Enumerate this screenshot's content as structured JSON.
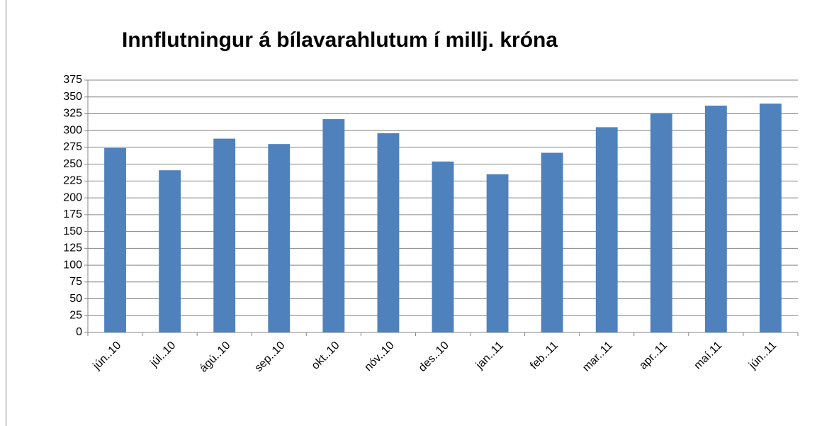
{
  "chart_data": {
    "type": "bar",
    "title": "Innflutningur á bílavarahlutum í millj. króna",
    "categories": [
      "jún..10",
      "júl..10",
      "ágú..10",
      "sep..10",
      "okt..10",
      "nóv..10",
      "des..10",
      "jan..11",
      "feb..11",
      "mar..11",
      "apr..11",
      "maí.11",
      "jún..11"
    ],
    "values": [
      274,
      241,
      288,
      280,
      317,
      296,
      254,
      235,
      267,
      305,
      326,
      337,
      340
    ],
    "color": "#4f81bd",
    "ylim": [
      0,
      375
    ],
    "yticks": [
      0,
      25,
      50,
      75,
      100,
      125,
      150,
      175,
      200,
      225,
      250,
      275,
      300,
      325,
      350,
      375
    ],
    "grid": true
  }
}
